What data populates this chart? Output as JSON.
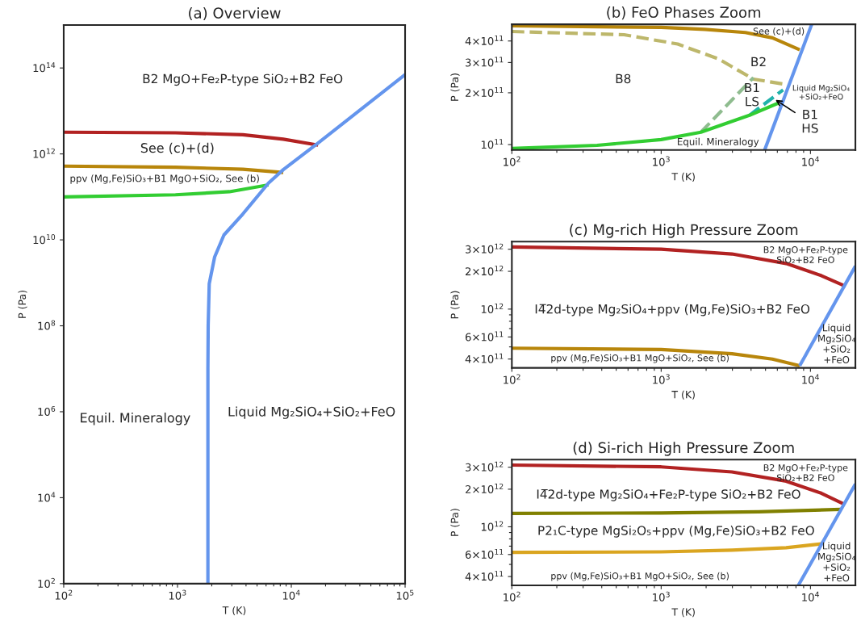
{
  "chart_data": [
    {
      "type": "line",
      "title": "(a) Overview",
      "xlabel": "T (K)",
      "ylabel": "P (Pa)",
      "log": "xy",
      "grid": false,
      "legend": false,
      "marker": "none",
      "line_style": "solid",
      "xlim": [
        100,
        100000
      ],
      "ylim": [
        100,
        1000000000000000.0
      ],
      "xticks": [
        {
          "value": 100,
          "label": "10$^{2}$"
        },
        {
          "value": 200,
          "label": null
        },
        {
          "value": 300,
          "label": null
        },
        {
          "value": 400,
          "label": null
        },
        {
          "value": 500,
          "label": null
        },
        {
          "value": 600,
          "label": null
        },
        {
          "value": 700,
          "label": null
        },
        {
          "value": 800,
          "label": null
        },
        {
          "value": 900,
          "label": null
        },
        {
          "value": 1000,
          "label": "10$^{3}$"
        },
        {
          "value": 2000,
          "label": null
        },
        {
          "value": 3000,
          "label": null
        },
        {
          "value": 4000,
          "label": null
        },
        {
          "value": 5000,
          "label": null
        },
        {
          "value": 6000,
          "label": null
        },
        {
          "value": 7000,
          "label": null
        },
        {
          "value": 8000,
          "label": null
        },
        {
          "value": 9000,
          "label": null
        },
        {
          "value": 10000,
          "label": "10$^{4}$"
        },
        {
          "value": 20000,
          "label": null
        },
        {
          "value": 30000,
          "label": null
        },
        {
          "value": 40000,
          "label": null
        },
        {
          "value": 50000,
          "label": null
        },
        {
          "value": 60000,
          "label": null
        },
        {
          "value": 70000,
          "label": null
        },
        {
          "value": 80000,
          "label": null
        },
        {
          "value": 90000,
          "label": null
        },
        {
          "value": 100000,
          "label": "10$^{5}$"
        }
      ],
      "yticks": [
        {
          "value": 100,
          "label": "10$^{2}$"
        },
        {
          "value": 10000,
          "label": "10$^{4}$"
        },
        {
          "value": 1000000.0,
          "label": "10$^{6}$"
        },
        {
          "value": 100000000.0,
          "label": "10$^{8}$"
        },
        {
          "value": 10000000000.0,
          "label": "10$^{10}$"
        },
        {
          "value": 1000000000000.0,
          "label": "10$^{12}$"
        },
        {
          "value": 100000000000000.0,
          "label": "10$^{14}$"
        }
      ],
      "series": [
        {
          "color": "#b22222",
          "x": [
            100,
            960,
            3750,
            8500,
            17200
          ],
          "values": [
            3200000000000.0,
            3100000000000.0,
            2800000000000.0,
            2200000000000.0,
            1600000000000.0
          ]
        },
        {
          "color": "#b8860b",
          "x": [
            100,
            960,
            3750,
            8500
          ],
          "values": [
            520000000000.0,
            490000000000.0,
            440000000000.0,
            370000000000.0
          ]
        },
        {
          "color": "#32cd32",
          "x": [
            100,
            960,
            2860,
            6300
          ],
          "values": [
            100000000000.0,
            112000000000.0,
            132000000000.0,
            190000000000.0
          ]
        },
        {
          "color": "#6495ed",
          "x": [
            1850,
            1850,
            1850,
            1850,
            1860,
            1900,
            2120,
            2560,
            3750,
            6300,
            8500,
            17200,
            100000
          ],
          "values": [
            100,
            10000,
            1000000.0,
            10000000.0,
            100000000.0,
            950000000.0,
            4000000000.0,
            13000000000.0,
            40000000000.0,
            210000000000.0,
            430000000000.0,
            1800000000000.0,
            70000000000000.0
          ]
        }
      ],
      "annotations": [
        "B2 MgO+Fe₂P-type SiO₂+B2 FeO",
        "See (c)+(d)",
        "ppv (Mg,Fe)SiO₃+B1 MgO+SiO₂, See (b)",
        "Equil. Mineralogy",
        "Liquid Mg₂SiO₄+SiO₂+FeO"
      ]
    },
    {
      "type": "line",
      "title": "(b) FeO Phases Zoom",
      "xlabel": "T (K)",
      "ylabel": "P (Pa)",
      "log": "xy",
      "grid": false,
      "legend": false,
      "marker": "none",
      "xlim": [
        100,
        20000
      ],
      "ylim": [
        93000000000.0,
        500000000000.0
      ],
      "xticks": [
        {
          "value": 100,
          "label": "10$^{2}$"
        },
        {
          "value": 200,
          "label": null
        },
        {
          "value": 300,
          "label": null
        },
        {
          "value": 400,
          "label": null
        },
        {
          "value": 500,
          "label": null
        },
        {
          "value": 600,
          "label": null
        },
        {
          "value": 700,
          "label": null
        },
        {
          "value": 800,
          "label": null
        },
        {
          "value": 900,
          "label": null
        },
        {
          "value": 1000,
          "label": "10$^{3}$"
        },
        {
          "value": 2000,
          "label": null
        },
        {
          "value": 3000,
          "label": null
        },
        {
          "value": 4000,
          "label": null
        },
        {
          "value": 5000,
          "label": null
        },
        {
          "value": 6000,
          "label": null
        },
        {
          "value": 7000,
          "label": null
        },
        {
          "value": 8000,
          "label": null
        },
        {
          "value": 9000,
          "label": null
        },
        {
          "value": 10000,
          "label": "10$^{4}$"
        }
      ],
      "yticks": [
        {
          "value": 100000000000.0,
          "label": "10$^{11}$"
        },
        {
          "value": 200000000000.0,
          "label": "2×10$^{11}$"
        },
        {
          "value": 300000000000.0,
          "label": "3×10$^{11}$"
        },
        {
          "value": 400000000000.0,
          "label": "4×10$^{11}$"
        }
      ],
      "series": [
        {
          "color": "#b8860b",
          "line_style": "solid",
          "x": [
            100,
            1000,
            1960,
            3660,
            5560,
            8470
          ],
          "values": [
            490000000000.0,
            480000000000.0,
            467000000000.0,
            448000000000.0,
            417000000000.0,
            356000000000.0
          ]
        },
        {
          "color": "#bdb76b",
          "line_style": "dashed",
          "x": [
            100,
            564,
            1290,
            2420,
            4150,
            6560
          ],
          "values": [
            454000000000.0,
            435000000000.0,
            384000000000.0,
            315000000000.0,
            240000000000.0,
            225000000000.0
          ]
        },
        {
          "color": "#8fbc8f",
          "line_style": "dashed",
          "x": [
            1845,
            4150
          ],
          "values": [
            118000000000.0,
            245000000000.0
          ]
        },
        {
          "color": "#20b2aa",
          "line_style": "dashed",
          "x": [
            3900,
            6560
          ],
          "values": [
            148000000000.0,
            208000000000.0
          ]
        },
        {
          "color": "#32cd32",
          "line_style": "solid",
          "x": [
            100,
            372,
            1000,
            1845,
            3900,
            6170
          ],
          "values": [
            95000000000.0,
            99000000000.0,
            107000000000.0,
            118000000000.0,
            148000000000.0,
            175000000000.0
          ]
        },
        {
          "color": "#6495ed",
          "line_style": "solid",
          "x": [
            4940,
            10200
          ],
          "values": [
            93300000000.0,
            500000000000.0
          ]
        }
      ],
      "annotations": [
        "See (c)+(d)",
        "B2",
        "B8",
        "B1\nLS",
        "Liquid Mg₂SiO₄\n+SiO₂+FeO",
        {
          "text": "B1\nHS",
          "x": 5830,
          "y": 182000000000.0
        },
        "Equil. Mineralogy"
      ]
    },
    {
      "type": "line",
      "title": "(c) Mg-rich High Pressure Zoom",
      "xlabel": "T (K)",
      "ylabel": "P (Pa)",
      "log": "xy",
      "grid": false,
      "legend": false,
      "marker": "none",
      "line_style": "solid",
      "xlim": [
        100,
        20000
      ],
      "ylim": [
        340000000000.0,
        3450000000000.0
      ],
      "xticks": [
        {
          "value": 100,
          "label": "10$^{2}$"
        },
        {
          "value": 200,
          "label": null
        },
        {
          "value": 300,
          "label": null
        },
        {
          "value": 400,
          "label": null
        },
        {
          "value": 500,
          "label": null
        },
        {
          "value": 600,
          "label": null
        },
        {
          "value": 700,
          "label": null
        },
        {
          "value": 800,
          "label": null
        },
        {
          "value": 900,
          "label": null
        },
        {
          "value": 1000,
          "label": "10$^{3}$"
        },
        {
          "value": 2000,
          "label": null
        },
        {
          "value": 3000,
          "label": null
        },
        {
          "value": 4000,
          "label": null
        },
        {
          "value": 5000,
          "label": null
        },
        {
          "value": 6000,
          "label": null
        },
        {
          "value": 7000,
          "label": null
        },
        {
          "value": 8000,
          "label": null
        },
        {
          "value": 9000,
          "label": null
        },
        {
          "value": 10000,
          "label": "10$^{4}$"
        }
      ],
      "yticks": [
        {
          "value": 400000000000.0,
          "label": "4×10$^{11}$"
        },
        {
          "value": 500000000000.0,
          "label": null
        },
        {
          "value": 600000000000.0,
          "label": "6×10$^{11}$"
        },
        {
          "value": 700000000000.0,
          "label": null
        },
        {
          "value": 800000000000.0,
          "label": null
        },
        {
          "value": 900000000000.0,
          "label": null
        },
        {
          "value": 1000000000000.0,
          "label": "10$^{12}$"
        },
        {
          "value": 2000000000000.0,
          "label": "2×10$^{12}$"
        },
        {
          "value": 3000000000000.0,
          "label": "3×10$^{12}$"
        }
      ],
      "series": [
        {
          "color": "#b22222",
          "x": [
            100,
            1000,
            2980,
            6870,
            11800,
            17200
          ],
          "values": [
            3130000000000.0,
            3000000000000.0,
            2750000000000.0,
            2310000000000.0,
            1850000000000.0,
            1520000000000.0
          ]
        },
        {
          "color": "#b8860b",
          "x": [
            100,
            1000,
            2980,
            5560,
            8470
          ],
          "values": [
            488000000000.0,
            476000000000.0,
            441000000000.0,
            400000000000.0,
            354000000000.0
          ]
        },
        {
          "color": "#6495ed",
          "x": [
            8470,
            20000
          ],
          "values": [
            354000000000.0,
            2200000000000.0
          ]
        }
      ],
      "annotations": [
        "B2 MgO+Fe₂P-type\nSiO₂+B2 FeO",
        "I4̅2d-type Mg₂SiO₄+ppv (Mg,Fe)SiO₃+B2 FeO",
        "ppv (Mg,Fe)SiO₃+B1 MgO+SiO₂, See (b)",
        "Liquid\nMg₂SiO₄\n+SiO₂\n+FeO"
      ]
    },
    {
      "type": "line",
      "title": "(d) Si-rich High Pressure Zoom",
      "xlabel": "T (K)",
      "ylabel": "P (Pa)",
      "log": "xy",
      "grid": false,
      "legend": false,
      "marker": "none",
      "line_style": "solid",
      "xlim": [
        100,
        20000
      ],
      "ylim": [
        340000000000.0,
        3450000000000.0
      ],
      "xticks": [
        {
          "value": 100,
          "label": "10$^{2}$"
        },
        {
          "value": 200,
          "label": null
        },
        {
          "value": 300,
          "label": null
        },
        {
          "value": 400,
          "label": null
        },
        {
          "value": 500,
          "label": null
        },
        {
          "value": 600,
          "label": null
        },
        {
          "value": 700,
          "label": null
        },
        {
          "value": 800,
          "label": null
        },
        {
          "value": 900,
          "label": null
        },
        {
          "value": 1000,
          "label": "10$^{3}$"
        },
        {
          "value": 2000,
          "label": null
        },
        {
          "value": 3000,
          "label": null
        },
        {
          "value": 4000,
          "label": null
        },
        {
          "value": 5000,
          "label": null
        },
        {
          "value": 6000,
          "label": null
        },
        {
          "value": 7000,
          "label": null
        },
        {
          "value": 8000,
          "label": null
        },
        {
          "value": 9000,
          "label": null
        },
        {
          "value": 10000,
          "label": "10$^{4}$"
        }
      ],
      "yticks": [
        {
          "value": 400000000000.0,
          "label": "4×10$^{11}$"
        },
        {
          "value": 500000000000.0,
          "label": null
        },
        {
          "value": 600000000000.0,
          "label": "6×10$^{11}$"
        },
        {
          "value": 700000000000.0,
          "label": null
        },
        {
          "value": 800000000000.0,
          "label": null
        },
        {
          "value": 900000000000.0,
          "label": null
        },
        {
          "value": 1000000000000.0,
          "label": "10$^{12}$"
        },
        {
          "value": 2000000000000.0,
          "label": "2×10$^{12}$"
        },
        {
          "value": 3000000000000.0,
          "label": "3×10$^{12}$"
        }
      ],
      "series": [
        {
          "color": "#b22222",
          "x": [
            100,
            1000,
            2980,
            6870,
            11800,
            17000
          ],
          "values": [
            3120000000000.0,
            3020000000000.0,
            2750000000000.0,
            2320000000000.0,
            1860000000000.0,
            1510000000000.0
          ]
        },
        {
          "color": "#808000",
          "x": [
            100,
            1000,
            4500,
            16100
          ],
          "values": [
            1280000000000.0,
            1290000000000.0,
            1320000000000.0,
            1380000000000.0
          ]
        },
        {
          "color": "#daa520",
          "x": [
            100,
            1000,
            2980,
            6870,
            11800
          ],
          "values": [
            624000000000.0,
            630000000000.0,
            650000000000.0,
            680000000000.0,
            730000000000.0
          ]
        },
        {
          "color": "#6495ed",
          "x": [
            8300,
            20000
          ],
          "values": [
            340000000000.0,
            2200000000000.0
          ]
        }
      ],
      "annotations": [
        "B2 MgO+Fe₂P-type\nSiO₂+B2 FeO",
        "I4̅2d-type Mg₂SiO₄+Fe₂P-type SiO₂+B2 FeO",
        "P2₁C-type MgSi₂O₅+ppv (Mg,Fe)SiO₃+B2 FeO",
        "ppv (Mg,Fe)SiO₃+B1 MgO+SiO₂, See (b)",
        "Liquid\nMg₂SiO₄\n+SiO₂\n+FeO"
      ]
    }
  ]
}
